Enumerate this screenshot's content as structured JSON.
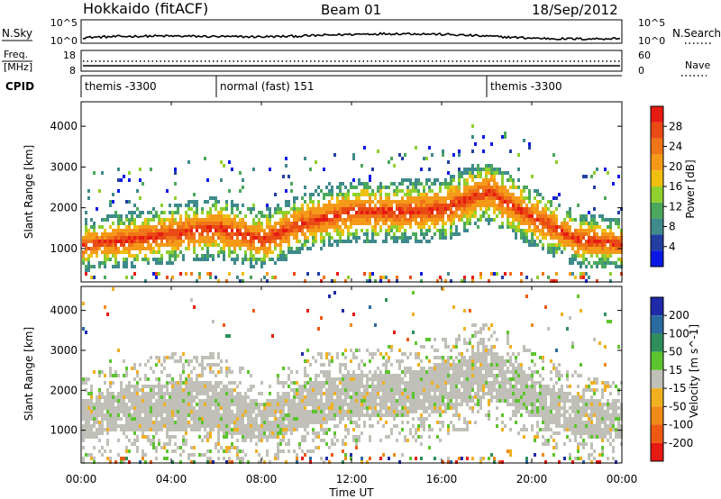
{
  "header": {
    "title": "Hokkaido (fitACF)",
    "beam": "Beam 01",
    "date": "18/Sep/2012"
  },
  "nsky_panel": {
    "left_label": "N.Sky",
    "right_label": "N.Search",
    "left_ticks": [
      "10^5",
      "10^0"
    ],
    "right_ticks": [
      "10^5",
      "10^0"
    ],
    "right_legend_style": "dotted"
  },
  "freq_panel": {
    "left_label_1": "Freq.",
    "left_label_2": "[MHz]",
    "right_label": "Nave",
    "left_ticks": [
      "18",
      "8"
    ],
    "right_ticks": [
      "60",
      "0"
    ],
    "right_legend_style": "dotted"
  },
  "cpid_panel": {
    "label": "CPID",
    "segments": [
      {
        "start_hour": 0,
        "end_hour": 6,
        "text": "themis -3300"
      },
      {
        "start_hour": 6,
        "end_hour": 18,
        "text": "normal (fast) 151"
      },
      {
        "start_hour": 18,
        "end_hour": 24,
        "text": "themis -3300"
      }
    ]
  },
  "time_axis": {
    "title": "Time UT",
    "tick_labels": [
      "00:00",
      "04:00",
      "08:00",
      "12:00",
      "16:00",
      "20:00",
      "00:00"
    ],
    "tick_hours": [
      0,
      4,
      8,
      12,
      16,
      20,
      24
    ],
    "range_hours": [
      0,
      24
    ]
  },
  "chart_data": [
    {
      "type": "heatmap",
      "name": "power",
      "ylabel": "Slant Range [km]",
      "y_ticks": [
        1000,
        2000,
        3000,
        4000
      ],
      "ylim": [
        180,
        4600
      ],
      "colorbar": {
        "label": "Power [dB]",
        "tick_labels": [
          "4",
          "8",
          "12",
          "16",
          "20",
          "24",
          "28"
        ],
        "colors": [
          "#0a18e6",
          "#233ea3",
          "#3f8a8c",
          "#4ba85c",
          "#8fcf2e",
          "#f0c010",
          "#f59a18",
          "#f07418",
          "#ea4a14",
          "#e61a12"
        ],
        "range": [
          0,
          32
        ]
      },
      "band": [
        {
          "t": 0,
          "c": 1120,
          "w": 260
        },
        {
          "t": 2,
          "c": 1250,
          "w": 280
        },
        {
          "t": 4,
          "c": 1400,
          "w": 300
        },
        {
          "t": 6,
          "c": 1550,
          "w": 320
        },
        {
          "t": 8,
          "c": 1250,
          "w": 300
        },
        {
          "t": 10,
          "c": 1700,
          "w": 300
        },
        {
          "t": 12,
          "c": 1950,
          "w": 320
        },
        {
          "t": 14,
          "c": 1950,
          "w": 320
        },
        {
          "t": 16,
          "c": 2000,
          "w": 320
        },
        {
          "t": 18,
          "c": 2450,
          "w": 340
        },
        {
          "t": 20,
          "c": 1800,
          "w": 300
        },
        {
          "t": 22,
          "c": 1250,
          "w": 280
        },
        {
          "t": 24,
          "c": 1150,
          "w": 260
        }
      ]
    },
    {
      "type": "heatmap",
      "name": "velocity",
      "ylabel": "Slant Range [km]",
      "y_ticks": [
        1000,
        2000,
        3000,
        4000
      ],
      "ylim": [
        180,
        4600
      ],
      "colorbar": {
        "label": "Velocity [m s^-1]",
        "tick_labels": [
          "200",
          "100",
          "50",
          "15",
          "-15",
          "-50",
          "-100",
          "-200"
        ],
        "colors": [
          "#1e2aa8",
          "#2a6aa0",
          "#2e8e5c",
          "#5cc42e",
          "#c0c0b8",
          "#f0b020",
          "#f08a18",
          "#ee5a14",
          "#e61a12"
        ],
        "range": [
          -250,
          250
        ]
      },
      "band": [
        {
          "t": 0,
          "c": 1300,
          "w": 500
        },
        {
          "t": 2,
          "c": 1600,
          "w": 560
        },
        {
          "t": 4,
          "c": 1650,
          "w": 600
        },
        {
          "t": 6,
          "c": 1650,
          "w": 600
        },
        {
          "t": 8,
          "c": 1250,
          "w": 500
        },
        {
          "t": 10,
          "c": 1700,
          "w": 550
        },
        {
          "t": 12,
          "c": 1900,
          "w": 550
        },
        {
          "t": 14,
          "c": 1950,
          "w": 550
        },
        {
          "t": 16,
          "c": 2100,
          "w": 600
        },
        {
          "t": 18,
          "c": 2500,
          "w": 600
        },
        {
          "t": 20,
          "c": 1900,
          "w": 500
        },
        {
          "t": 22,
          "c": 1400,
          "w": 500
        },
        {
          "t": 24,
          "c": 1250,
          "w": 450
        }
      ]
    }
  ]
}
